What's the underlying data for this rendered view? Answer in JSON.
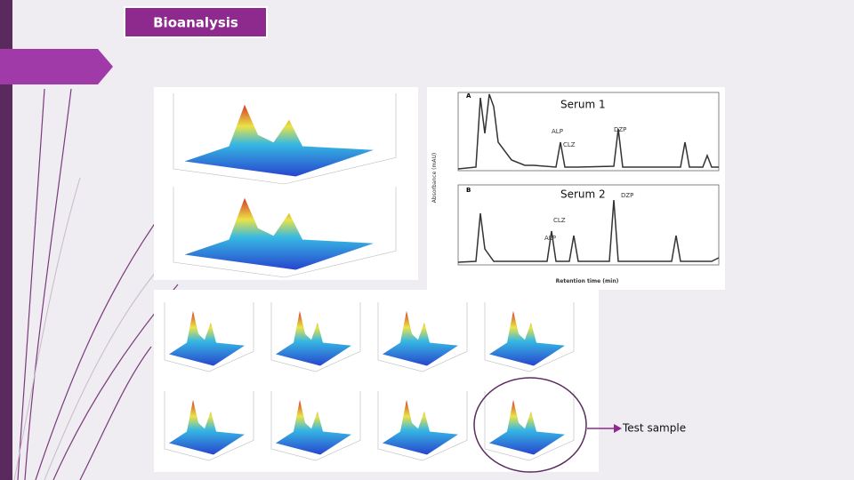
{
  "slide": {
    "title": "Bioanalysis",
    "labels": [
      "Serum 1",
      "Serum 2"
    ],
    "annotation": "Test sample"
  },
  "chromatogram": {
    "panel_a": {
      "id": "A",
      "peaks": [
        "ALP",
        "CLZ",
        "DZP"
      ]
    },
    "panel_b": {
      "id": "B",
      "peaks": [
        "DZP",
        "CLZ",
        "ALP"
      ]
    },
    "x_label": "Retention time (min)",
    "y_label": "Absorbance (mAU)"
  }
}
